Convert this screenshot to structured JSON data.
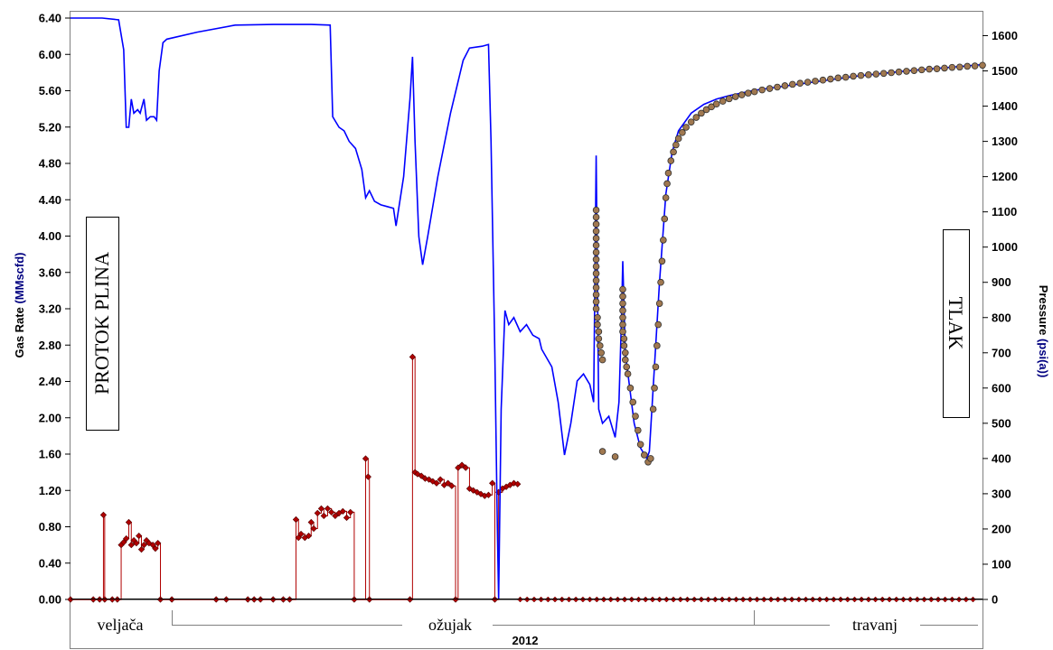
{
  "chart_data": {
    "type": "line",
    "x_unit": "day of 2012 from 1 February",
    "x_range": [
      6,
      78
    ],
    "y_left": {
      "label_main": "Gas Rate ",
      "label_unit": "(MMscfd)",
      "range": [
        0,
        6.4
      ],
      "ticks": [
        "0.00",
        "0.40",
        "0.80",
        "1.20",
        "1.60",
        "2.00",
        "2.40",
        "2.80",
        "3.20",
        "3.60",
        "4.00",
        "4.40",
        "4.80",
        "5.20",
        "5.60",
        "6.00",
        "6.40"
      ],
      "color": "#000080"
    },
    "y_right": {
      "label_main": "Pressure ",
      "label_unit": "(psi(a))",
      "range": [
        0,
        1650
      ],
      "ticks": [
        "0",
        "100",
        "200",
        "300",
        "400",
        "500",
        "600",
        "700",
        "800",
        "900",
        "1000",
        "1100",
        "1200",
        "1300",
        "1400",
        "1500",
        "1600"
      ],
      "color": "#000080"
    },
    "time_axis": {
      "months": [
        "veljača",
        "ožujak",
        "travanj"
      ],
      "year": "2012"
    },
    "annotations": {
      "left": "PROTOK  PLINA",
      "right": "TLAK"
    },
    "series": [
      {
        "key": "pressure_measured",
        "style": "blue-line",
        "color": "#0000ff",
        "axis": "right",
        "points": [
          [
            6,
            1650
          ],
          [
            8.5,
            1650
          ],
          [
            9.8,
            1645
          ],
          [
            10.2,
            1560
          ],
          [
            10.4,
            1340
          ],
          [
            10.6,
            1340
          ],
          [
            10.8,
            1420
          ],
          [
            11.0,
            1380
          ],
          [
            11.3,
            1390
          ],
          [
            11.5,
            1380
          ],
          [
            11.8,
            1420
          ],
          [
            12.0,
            1360
          ],
          [
            12.3,
            1370
          ],
          [
            12.6,
            1370
          ],
          [
            12.8,
            1360
          ],
          [
            13.0,
            1500
          ],
          [
            13.3,
            1580
          ],
          [
            13.6,
            1590
          ],
          [
            16.0,
            1610
          ],
          [
            19.0,
            1630
          ],
          [
            22.0,
            1632
          ],
          [
            25.0,
            1632
          ],
          [
            26.5,
            1630
          ],
          [
            26.7,
            1370
          ],
          [
            27.2,
            1340
          ],
          [
            27.6,
            1330
          ],
          [
            28.0,
            1300
          ],
          [
            28.5,
            1280
          ],
          [
            29.0,
            1220
          ],
          [
            29.3,
            1140
          ],
          [
            29.6,
            1160
          ],
          [
            30.0,
            1130
          ],
          [
            30.5,
            1120
          ],
          [
            31.0,
            1115
          ],
          [
            31.5,
            1110
          ],
          [
            31.7,
            1060
          ],
          [
            32.3,
            1200
          ],
          [
            32.8,
            1420
          ],
          [
            33.0,
            1540
          ],
          [
            33.2,
            1300
          ],
          [
            33.5,
            1030
          ],
          [
            33.8,
            950
          ],
          [
            34.2,
            1030
          ],
          [
            35.0,
            1200
          ],
          [
            36.0,
            1380
          ],
          [
            37.0,
            1530
          ],
          [
            37.5,
            1565
          ],
          [
            38.5,
            1570
          ],
          [
            39.0,
            1575
          ],
          [
            39.2,
            1300
          ],
          [
            39.5,
            700
          ],
          [
            39.7,
            200
          ],
          [
            39.8,
            0
          ],
          [
            40.0,
            540
          ],
          [
            40.3,
            820
          ],
          [
            40.6,
            780
          ],
          [
            41.0,
            800
          ],
          [
            41.5,
            760
          ],
          [
            42.0,
            780
          ],
          [
            42.5,
            750
          ],
          [
            43.0,
            740
          ],
          [
            43.2,
            710
          ],
          [
            44.0,
            660
          ],
          [
            44.5,
            560
          ],
          [
            45.0,
            410
          ],
          [
            45.5,
            500
          ],
          [
            46.0,
            620
          ],
          [
            46.5,
            640
          ],
          [
            47.0,
            610
          ],
          [
            47.3,
            560
          ],
          [
            47.5,
            1260
          ],
          [
            47.7,
            540
          ],
          [
            48.0,
            500
          ],
          [
            48.5,
            520
          ],
          [
            49.0,
            460
          ],
          [
            49.3,
            560
          ],
          [
            49.5,
            800
          ],
          [
            49.6,
            960
          ],
          [
            49.8,
            700
          ],
          [
            50.5,
            500
          ],
          [
            51.0,
            430
          ],
          [
            51.5,
            400
          ],
          [
            51.7,
            420
          ],
          [
            52.0,
            600
          ],
          [
            52.5,
            900
          ],
          [
            53.0,
            1150
          ],
          [
            53.5,
            1270
          ],
          [
            54.0,
            1330
          ],
          [
            55.0,
            1380
          ],
          [
            56.0,
            1405
          ],
          [
            57.0,
            1420
          ],
          [
            58.0,
            1430
          ],
          [
            60.0,
            1445
          ],
          [
            62.0,
            1455
          ],
          [
            65.0,
            1470
          ],
          [
            68.0,
            1485
          ],
          [
            72.0,
            1500
          ],
          [
            76.0,
            1512
          ],
          [
            78.0,
            1518
          ]
        ]
      },
      {
        "key": "pressure_model",
        "style": "brown-markers",
        "color": "#a07850",
        "axis": "right",
        "points": [
          [
            47.5,
            1105
          ],
          [
            47.5,
            1085
          ],
          [
            47.5,
            1065
          ],
          [
            47.5,
            1045
          ],
          [
            47.5,
            1025
          ],
          [
            47.5,
            1005
          ],
          [
            47.5,
            985
          ],
          [
            47.5,
            965
          ],
          [
            47.5,
            945
          ],
          [
            47.5,
            925
          ],
          [
            47.5,
            905
          ],
          [
            47.5,
            885
          ],
          [
            47.5,
            865
          ],
          [
            47.5,
            845
          ],
          [
            47.5,
            825
          ],
          [
            47.6,
            800
          ],
          [
            47.6,
            780
          ],
          [
            47.7,
            760
          ],
          [
            47.7,
            740
          ],
          [
            47.8,
            720
          ],
          [
            47.9,
            700
          ],
          [
            48.0,
            680
          ],
          [
            48.0,
            420
          ],
          [
            49.0,
            405
          ],
          [
            49.6,
            880
          ],
          [
            49.6,
            860
          ],
          [
            49.6,
            840
          ],
          [
            49.6,
            820
          ],
          [
            49.6,
            800
          ],
          [
            49.6,
            780
          ],
          [
            49.6,
            760
          ],
          [
            49.7,
            740
          ],
          [
            49.7,
            720
          ],
          [
            49.8,
            700
          ],
          [
            49.8,
            680
          ],
          [
            49.9,
            660
          ],
          [
            50.0,
            640
          ],
          [
            50.2,
            600
          ],
          [
            50.4,
            560
          ],
          [
            50.6,
            520
          ],
          [
            50.8,
            480
          ],
          [
            51.0,
            440
          ],
          [
            51.3,
            410
          ],
          [
            51.6,
            390
          ],
          [
            51.8,
            400
          ],
          [
            52.0,
            540
          ],
          [
            52.1,
            600
          ],
          [
            52.2,
            660
          ],
          [
            52.3,
            720
          ],
          [
            52.4,
            780
          ],
          [
            52.5,
            840
          ],
          [
            52.6,
            900
          ],
          [
            52.7,
            960
          ],
          [
            52.8,
            1020
          ],
          [
            52.9,
            1080
          ],
          [
            53.0,
            1140
          ],
          [
            53.1,
            1180
          ],
          [
            53.2,
            1210
          ],
          [
            53.4,
            1245
          ],
          [
            53.6,
            1270
          ],
          [
            53.8,
            1290
          ],
          [
            54.0,
            1308
          ],
          [
            54.3,
            1325
          ],
          [
            54.6,
            1340
          ],
          [
            55.0,
            1355
          ],
          [
            55.4,
            1368
          ],
          [
            55.8,
            1380
          ],
          [
            56.2,
            1390
          ],
          [
            56.6,
            1398
          ],
          [
            57.0,
            1406
          ],
          [
            57.5,
            1414
          ],
          [
            58.0,
            1421
          ],
          [
            58.5,
            1427
          ],
          [
            59.0,
            1432
          ],
          [
            59.5,
            1437
          ],
          [
            60.0,
            1441
          ],
          [
            60.6,
            1446
          ],
          [
            61.2,
            1450
          ],
          [
            61.8,
            1454
          ],
          [
            62.4,
            1458
          ],
          [
            63.0,
            1462
          ],
          [
            63.6,
            1465
          ],
          [
            64.2,
            1468
          ],
          [
            64.8,
            1471
          ],
          [
            65.4,
            1474
          ],
          [
            66.0,
            1477
          ],
          [
            66.6,
            1480
          ],
          [
            67.2,
            1482
          ],
          [
            67.8,
            1485
          ],
          [
            68.4,
            1487
          ],
          [
            69.0,
            1489
          ],
          [
            69.6,
            1491
          ],
          [
            70.2,
            1493
          ],
          [
            70.8,
            1495
          ],
          [
            71.4,
            1497
          ],
          [
            72.0,
            1499
          ],
          [
            72.6,
            1501
          ],
          [
            73.2,
            1503
          ],
          [
            73.8,
            1505
          ],
          [
            74.4,
            1506
          ],
          [
            75.0,
            1508
          ],
          [
            75.6,
            1510
          ],
          [
            76.2,
            1511
          ],
          [
            76.8,
            1513
          ],
          [
            77.4,
            1514
          ],
          [
            78.0,
            1516
          ]
        ]
      },
      {
        "key": "gas_rate",
        "style": "red-step-markers",
        "color": "#b00000",
        "axis": "left",
        "points": [
          [
            6.0,
            0
          ],
          [
            7.8,
            0
          ],
          [
            8.3,
            0
          ],
          [
            8.6,
            0.93
          ],
          [
            8.7,
            0
          ],
          [
            9.3,
            0
          ],
          [
            9.7,
            0
          ],
          [
            10.0,
            0.6
          ],
          [
            10.2,
            0.63
          ],
          [
            10.4,
            0.67
          ],
          [
            10.6,
            0.85
          ],
          [
            10.8,
            0.6
          ],
          [
            11.0,
            0.65
          ],
          [
            11.2,
            0.62
          ],
          [
            11.4,
            0.7
          ],
          [
            11.6,
            0.55
          ],
          [
            11.8,
            0.6
          ],
          [
            12.0,
            0.65
          ],
          [
            12.2,
            0.62
          ],
          [
            12.5,
            0.6
          ],
          [
            12.7,
            0.56
          ],
          [
            12.9,
            0.62
          ],
          [
            13.1,
            0
          ],
          [
            14.0,
            0
          ],
          [
            17.5,
            0
          ],
          [
            18.3,
            0
          ],
          [
            20.0,
            0
          ],
          [
            20.5,
            0
          ],
          [
            21.0,
            0
          ],
          [
            22.0,
            0
          ],
          [
            22.8,
            0
          ],
          [
            23.3,
            0
          ],
          [
            23.8,
            0.88
          ],
          [
            24.0,
            0.68
          ],
          [
            24.2,
            0.72
          ],
          [
            24.5,
            0.68
          ],
          [
            24.8,
            0.7
          ],
          [
            25.0,
            0.85
          ],
          [
            25.2,
            0.78
          ],
          [
            25.5,
            0.95
          ],
          [
            25.8,
            1.0
          ],
          [
            26.0,
            0.92
          ],
          [
            26.3,
            1.0
          ],
          [
            26.6,
            0.96
          ],
          [
            26.9,
            0.92
          ],
          [
            27.2,
            0.95
          ],
          [
            27.5,
            0.97
          ],
          [
            27.8,
            0.9
          ],
          [
            28.1,
            0.96
          ],
          [
            28.4,
            0
          ],
          [
            29.3,
            1.55
          ],
          [
            29.5,
            1.35
          ],
          [
            29.6,
            0
          ],
          [
            32.8,
            0
          ],
          [
            33.0,
            2.67
          ],
          [
            33.2,
            1.4
          ],
          [
            33.4,
            1.38
          ],
          [
            33.7,
            1.36
          ],
          [
            34.0,
            1.33
          ],
          [
            34.3,
            1.32
          ],
          [
            34.6,
            1.3
          ],
          [
            34.9,
            1.28
          ],
          [
            35.2,
            1.32
          ],
          [
            35.5,
            1.26
          ],
          [
            35.8,
            1.28
          ],
          [
            36.1,
            1.25
          ],
          [
            36.4,
            0
          ],
          [
            36.6,
            1.45
          ],
          [
            36.9,
            1.48
          ],
          [
            37.2,
            1.45
          ],
          [
            37.5,
            1.22
          ],
          [
            37.8,
            1.2
          ],
          [
            38.1,
            1.18
          ],
          [
            38.4,
            1.16
          ],
          [
            38.7,
            1.14
          ],
          [
            39.0,
            1.15
          ],
          [
            39.3,
            1.28
          ],
          [
            39.5,
            0
          ],
          [
            39.8,
            1.18
          ],
          [
            40.1,
            1.22
          ],
          [
            40.4,
            1.24
          ],
          [
            40.7,
            1.26
          ],
          [
            41.0,
            1.28
          ],
          [
            41.3,
            1.27
          ]
        ]
      },
      {
        "key": "gas_rate_zero",
        "style": "red-zero-markers",
        "color": "#b00000",
        "axis": "left",
        "points": [
          [
            41.5,
            0
          ],
          [
            77.5,
            0
          ]
        ]
      }
    ]
  }
}
